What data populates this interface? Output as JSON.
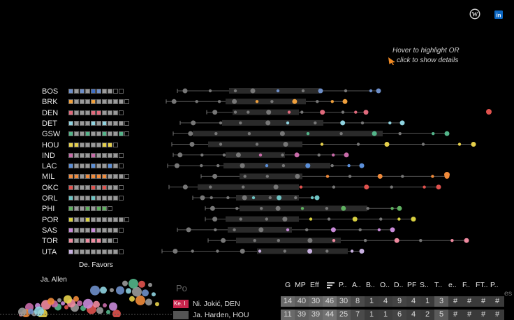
{
  "header": {
    "icons": [
      {
        "name": "wordpress-icon",
        "color": "#cfcfcf"
      },
      {
        "name": "linkedin-icon",
        "color": "#0a66c2"
      }
    ],
    "hint_line1": "Hover to highlight OR",
    "hint_line2": "click to show details"
  },
  "teams": [
    {
      "code": "BOS",
      "colors": [
        "#6e8fc9",
        "#9a9a9a",
        "#6e8fc9",
        "#9a9a9a",
        "#3f6fc4",
        "#6e8fc9",
        "#9a9a9a",
        "#9a9a9a",
        "#000",
        "#000"
      ]
    },
    {
      "code": "BRK",
      "colors": [
        "#f0a03c",
        "#9a9a9a",
        "#9a9a9a",
        "#9a9a9a",
        "#f0a03c",
        "#9a9a9a",
        "#9a9a9a",
        "#9a9a9a",
        "#9a9a9a",
        "#9a9a9a",
        "#000"
      ]
    },
    {
      "code": "DEN",
      "colors": [
        "#e06a7c",
        "#9a9a9a",
        "#9a9a9a",
        "#9a9a9a",
        "#e06a7c",
        "#e06a7c",
        "#9a9a9a",
        "#9a9a9a",
        "#9a9a9a",
        "#000"
      ]
    },
    {
      "code": "DET",
      "colors": [
        "#8fd3e0",
        "#9a9a9a",
        "#9a9a9a",
        "#9a9a9a",
        "#8fd3e0",
        "#9a9a9a",
        "#8fd3e0",
        "#9a9a9a",
        "#9a9a9a",
        "#9a9a9a",
        "#000"
      ]
    },
    {
      "code": "GSW",
      "colors": [
        "#53b58a",
        "#9a9a9a",
        "#9a9a9a",
        "#53b58a",
        "#9a9a9a",
        "#9a9a9a",
        "#53b58a",
        "#9a9a9a",
        "#9a9a9a",
        "#53b58a",
        "#000"
      ]
    },
    {
      "code": "HOU",
      "colors": [
        "#e6d04a",
        "#e6d04a",
        "#9a9a9a",
        "#9a9a9a",
        "#9a9a9a",
        "#9a9a9a",
        "#e6d04a",
        "#e6d04a",
        "#000"
      ]
    },
    {
      "code": "IND",
      "colors": [
        "#c86aa8",
        "#9a9a9a",
        "#9a9a9a",
        "#9a9a9a",
        "#c86aa8",
        "#9a9a9a",
        "#9a9a9a",
        "#9a9a9a",
        "#9a9a9a",
        "#000"
      ]
    },
    {
      "code": "LAC",
      "colors": [
        "#5b8fd8",
        "#9a9a9a",
        "#9a9a9a",
        "#9a9a9a",
        "#5b8fd8",
        "#9a9a9a",
        "#9a9a9a",
        "#5b8fd8",
        "#9a9a9a",
        "#000"
      ]
    },
    {
      "code": "MIL",
      "colors": [
        "#f08a3a",
        "#f08a3a",
        "#9a9a9a",
        "#f08a3a",
        "#f08a3a",
        "#f08a3a",
        "#f08a3a",
        "#9a9a9a",
        "#9a9a9a",
        "#9a9a9a",
        "#000"
      ]
    },
    {
      "code": "OKC",
      "colors": [
        "#e0524e",
        "#9a9a9a",
        "#9a9a9a",
        "#9a9a9a",
        "#e0524e",
        "#9a9a9a",
        "#e0524e",
        "#9a9a9a",
        "#9a9a9a",
        "#000"
      ]
    },
    {
      "code": "ORL",
      "colors": [
        "#6ec4c4",
        "#9a9a9a",
        "#9a9a9a",
        "#9a9a9a",
        "#6ec4c4",
        "#9a9a9a",
        "#9a9a9a",
        "#9a9a9a",
        "#9a9a9a",
        "#000"
      ]
    },
    {
      "code": "PHI",
      "colors": [
        "#5fb060",
        "#9a9a9a",
        "#9a9a9a",
        "#5fb060",
        "#9a9a9a",
        "#5fb060",
        "#5fb060",
        "#000"
      ]
    },
    {
      "code": "POR",
      "colors": [
        "#d8d040",
        "#9a9a9a",
        "#9a9a9a",
        "#d8d040",
        "#9a9a9a",
        "#9a9a9a",
        "#9a9a9a",
        "#9a9a9a",
        "#9a9a9a",
        "#9a9a9a",
        "#000"
      ]
    },
    {
      "code": "SAS",
      "colors": [
        "#c88ad8",
        "#9a9a9a",
        "#9a9a9a",
        "#9a9a9a",
        "#c88ad8",
        "#9a9a9a",
        "#9a9a9a",
        "#9a9a9a",
        "#9a9a9a",
        "#000"
      ]
    },
    {
      "code": "TOR",
      "colors": [
        "#f08aa0",
        "#9a9a9a",
        "#9a9a9a",
        "#f08aa0",
        "#f08aa0",
        "#f08aa0",
        "#9a9a9a",
        "#9a9a9a",
        "#000"
      ]
    },
    {
      "code": "UTA",
      "colors": [
        "#c8b0e0",
        "#9a9a9a",
        "#9a9a9a",
        "#9a9a9a",
        "#9a9a9a",
        "#9a9a9a",
        "#9a9a9a",
        "#9a9a9a",
        "#9a9a9a",
        "#000"
      ]
    }
  ],
  "scatter_labels": {
    "de_favors": "De. Favors",
    "ja_allen": "Ja. Allen"
  },
  "table": {
    "pos_header": "Po",
    "columns": [
      "G",
      "MP",
      "Eff",
      "P..",
      "A..",
      "B..",
      "O..",
      "D..",
      "PF",
      "S..",
      "T..",
      "e..",
      "F..",
      "FT..",
      "P.."
    ],
    "extra_header": "es",
    "players": [
      {
        "swatch_label": "Ke. I",
        "name": "Ni. Jokić, DEN",
        "color": "#c8244c"
      },
      {
        "swatch_label": "",
        "name": "Ja. Harden, HOU",
        "color": "#555"
      }
    ],
    "rows": [
      [
        "14",
        "40",
        "30",
        "46",
        "30",
        "8",
        "1",
        "4",
        "9",
        "4",
        "1",
        "3",
        "#",
        "#",
        "#",
        "#"
      ],
      [
        "11",
        "39",
        "39",
        "44",
        "25",
        "7",
        "1",
        "1",
        "6",
        "4",
        "2",
        "5",
        "#",
        "#",
        "#",
        "#"
      ]
    ]
  }
}
